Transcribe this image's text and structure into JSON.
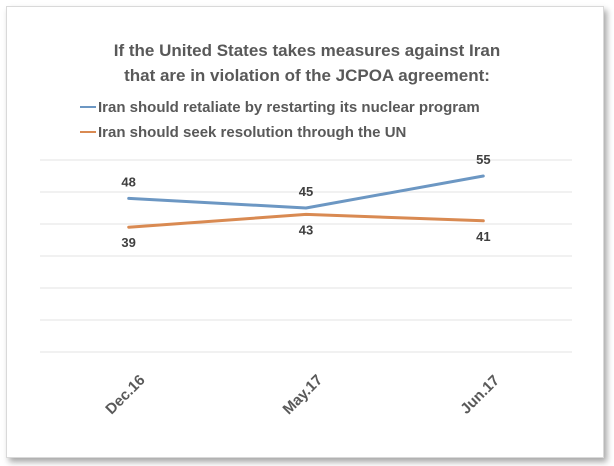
{
  "chart_data": {
    "type": "line",
    "title_lines": [
      "If the United States takes measures against Iran",
      "that are in violation of the JCPOA agreement:"
    ],
    "categories": [
      "Dec.16",
      "May.17",
      "Jun.17"
    ],
    "series": [
      {
        "name": "Iran should retaliate by restarting its nuclear program",
        "color": "#6c97c3",
        "values": [
          48,
          45,
          55
        ],
        "labels": [
          "48",
          "45",
          "55"
        ]
      },
      {
        "name": "Iran should seek resolution through the UN",
        "color": "#d98a52",
        "values": [
          39,
          43,
          41
        ],
        "labels": [
          "39",
          "43",
          "41"
        ]
      }
    ],
    "ylim": [
      0,
      60
    ],
    "grid": true,
    "legend_position": "top-left",
    "xlabel": "",
    "ylabel": ""
  }
}
